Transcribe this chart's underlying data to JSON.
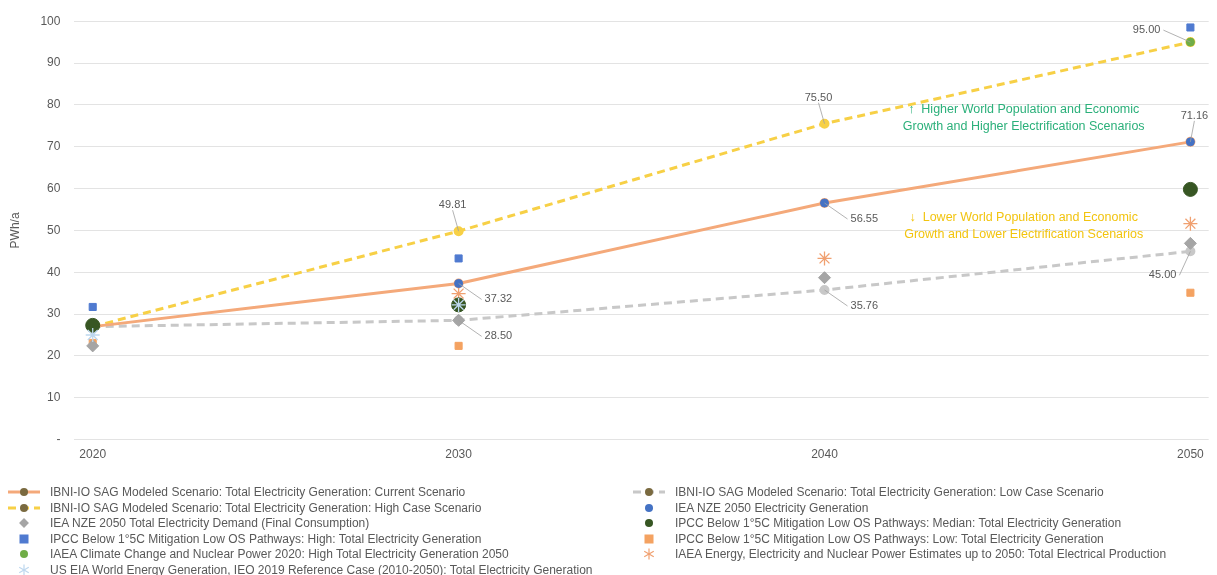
{
  "chart_data": {
    "type": "line",
    "ylabel": "PWh/a",
    "x": [
      2020,
      2030,
      2040,
      2050
    ],
    "xlim": [
      2019.5,
      2050.5
    ],
    "xticks": [
      2020,
      2030,
      2040,
      2050
    ],
    "ylim": [
      0,
      100
    ],
    "yticks": [
      {
        "value": 0,
        "label": "-"
      },
      10,
      20,
      30,
      40,
      50,
      60,
      70,
      80,
      90,
      100
    ],
    "grid": "y",
    "legend": "bottom",
    "annotations": [
      "↑  Higher World Population and Economic Growth and Higher Electrification Scenarios",
      "↓  Lower World Population and Economic Growth and Lower Electrification Scenarios"
    ],
    "series": [
      {
        "name": "IBNI-IO SAG Modeled Scenario: Total Electricity Generation: Current Scenario",
        "color": "#f4a97a",
        "line_style": "solid",
        "marker": "circle",
        "values": [
          27,
          37.32,
          56.55,
          71.16
        ],
        "value_labels": [
          null,
          "37.32",
          "56.55",
          "71.16"
        ]
      },
      {
        "name": "IBNI-IO SAG Modeled Scenario: Total Electricity Generation: Low Case Scenario",
        "color": "#c8c8c8",
        "line_style": "dashed",
        "marker": "circle",
        "values": [
          27,
          28.5,
          35.76,
          45
        ],
        "value_labels": [
          null,
          "28.50",
          "35.76",
          "45.00"
        ]
      },
      {
        "name": "IBNI-IO SAG Modeled Scenario: Total Electricity Generation: High Case Scenario",
        "color": "#f7d046",
        "line_style": "dashed",
        "marker": "circle",
        "values": [
          27,
          49.81,
          75.5,
          95
        ],
        "value_labels": [
          null,
          "49.81",
          "75.50",
          null
        ]
      },
      {
        "name": "IEA NZE 2050 Electricity Generation",
        "type": "scatter",
        "color": "#4472c4",
        "marker": "circle",
        "values": [
          null,
          37.32,
          56.55,
          71.16
        ]
      },
      {
        "name": "IEA NZE 2050 Total Electricity Demand (Final Consumption)",
        "type": "scatter",
        "color": "#a5a5a5",
        "marker": "diamond",
        "values": [
          22.4,
          28.5,
          38.7,
          46.9
        ]
      },
      {
        "name": "IPCC Below 1°5C Mitigation Low OS Pathways: Median: Total Electricity Generation",
        "type": "scatter",
        "color": "#375623",
        "marker": "circle",
        "values": [
          27.3,
          32.2,
          null,
          59.8
        ]
      },
      {
        "name": "IPCC Below 1°5C Mitigation Low OS Pathways: High: Total Electricity Generation",
        "type": "scatter",
        "color": "#4f7ad0",
        "marker": "square",
        "values": [
          31.7,
          43.3,
          null,
          98.5
        ]
      },
      {
        "name": "IPCC Below 1°5C Mitigation Low OS Pathways: Low: Total Electricity Generation",
        "type": "scatter",
        "color": "#f4a261",
        "marker": "square",
        "values": [
          23.1,
          22.4,
          null,
          35.1
        ]
      },
      {
        "name": "IAEA Climate Change and Nuclear Power 2020: High Total Electricity Generation 2050",
        "type": "scatter",
        "color": "#70ad47",
        "marker": "circle",
        "values": [
          null,
          null,
          null,
          95
        ],
        "value_labels": [
          null,
          null,
          null,
          "95.00"
        ]
      },
      {
        "name": "IAEA Energy, Electricity and Nuclear Power Estimates up to 2050: Total Electrical Production",
        "type": "scatter",
        "color": "#f0a070",
        "marker": "cross",
        "values": [
          null,
          34.9,
          43.3,
          51.6
        ]
      },
      {
        "name": "US EIA World Energy Generation, IEO 2019 Reference Case (2010-2050): Total Electricity Generation",
        "type": "scatter",
        "color": "#bdd7ee",
        "marker": "cross",
        "values": [
          25,
          32.2,
          null,
          null
        ]
      }
    ]
  }
}
